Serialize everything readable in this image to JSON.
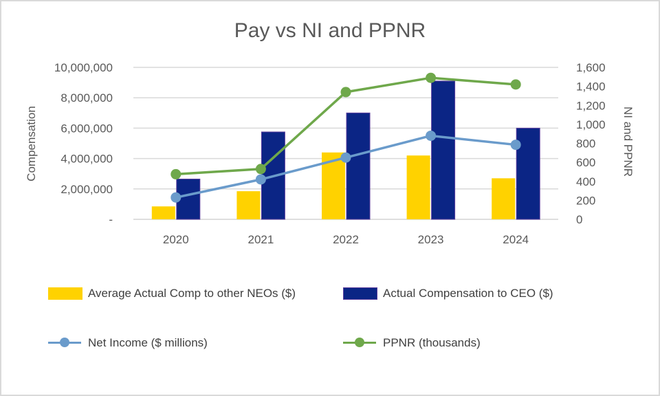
{
  "chart_data": {
    "type": "bar+line",
    "title": "Pay vs NI and PPNR",
    "categories": [
      "2020",
      "2021",
      "2022",
      "2023",
      "2024"
    ],
    "left_axis": {
      "label": "Compensation",
      "ylim": [
        0,
        10000000
      ],
      "ticks": [
        "-",
        "2,000,000",
        "4,000,000",
        "6,000,000",
        "8,000,000",
        "10,000,000"
      ],
      "tick_values": [
        0,
        2000000,
        4000000,
        6000000,
        8000000,
        10000000
      ]
    },
    "right_axis": {
      "label": "NI and PPNR",
      "ylim": [
        0,
        1600
      ],
      "ticks": [
        "0",
        "200",
        "400",
        "600",
        "800",
        "1,000",
        "1,200",
        "1,400",
        "1,600"
      ],
      "tick_values": [
        0,
        200,
        400,
        600,
        800,
        1000,
        1200,
        1400,
        1600
      ]
    },
    "bar_series": [
      {
        "name": "Average Actual Comp to other NEOs ($)",
        "color": "#FFD200",
        "values": [
          850000,
          1850000,
          4400000,
          4200000,
          2700000
        ]
      },
      {
        "name": "Actual Compensation to CEO ($)",
        "color": "#0B2585",
        "values": [
          2650000,
          5750000,
          7000000,
          9100000,
          6000000
        ]
      }
    ],
    "line_series": [
      {
        "name": "Net Income ($ millions)",
        "color": "#6A9BCB",
        "values": [
          230,
          420,
          650,
          880,
          785
        ]
      },
      {
        "name": "PPNR (thousands)",
        "color": "#6FA84B",
        "values": [
          475,
          530,
          1340,
          1490,
          1420
        ]
      }
    ],
    "grid": true,
    "legend_position": "bottom"
  }
}
